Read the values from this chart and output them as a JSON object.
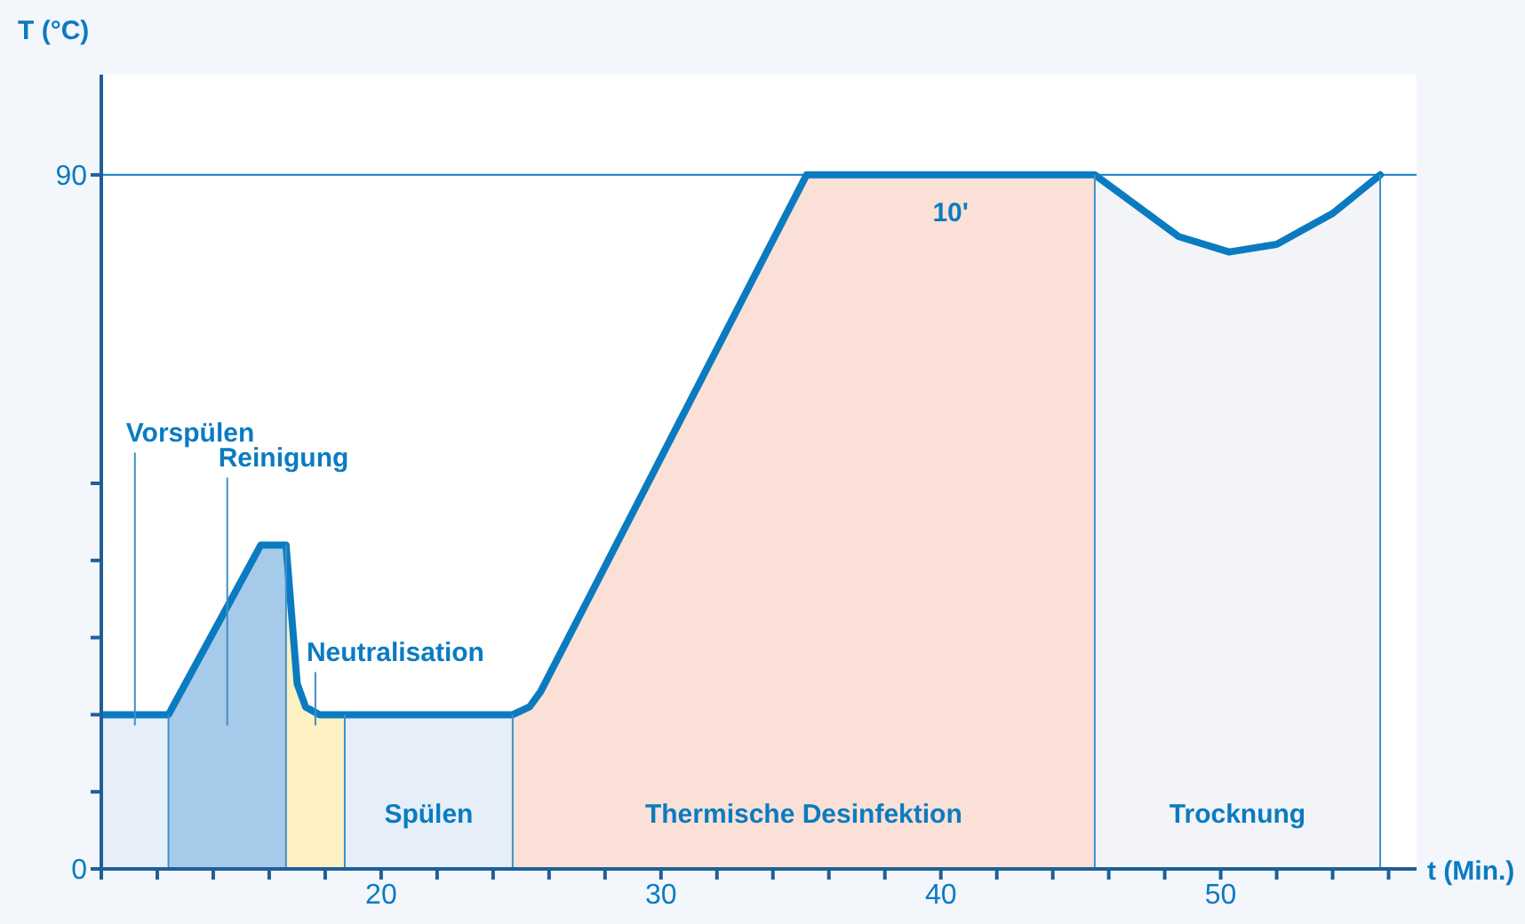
{
  "chart_data": {
    "type": "area",
    "xlabel": "t (Min.)",
    "ylabel": "T (°C)",
    "xlim": [
      10,
      57
    ],
    "ylim": [
      0,
      103
    ],
    "xticks": [
      {
        "value": 10,
        "label": null
      },
      {
        "value": 12,
        "label": null
      },
      {
        "value": 14,
        "label": null
      },
      {
        "value": 16,
        "label": null
      },
      {
        "value": 18,
        "label": null
      },
      20,
      {
        "value": 22,
        "label": null
      },
      {
        "value": 24,
        "label": null
      },
      {
        "value": 26,
        "label": null
      },
      {
        "value": 28,
        "label": null
      },
      30,
      {
        "value": 32,
        "label": null
      },
      {
        "value": 34,
        "label": null
      },
      {
        "value": 36,
        "label": null
      },
      {
        "value": 38,
        "label": null
      },
      40,
      {
        "value": 42,
        "label": null
      },
      {
        "value": 44,
        "label": null
      },
      {
        "value": 46,
        "label": null
      },
      {
        "value": 48,
        "label": null
      },
      50,
      {
        "value": 52,
        "label": null
      },
      {
        "value": 54,
        "label": null
      },
      {
        "value": 56,
        "label": null
      }
    ],
    "yticks": [
      0,
      {
        "value": 10,
        "label": null
      },
      {
        "value": 20,
        "label": null
      },
      {
        "value": 30,
        "label": null
      },
      {
        "value": 40,
        "label": null
      },
      {
        "value": 50,
        "label": null
      },
      90
    ],
    "grid": false,
    "ref_lines": [
      {
        "axis": "y",
        "value": 90,
        "color": "#0b7bc1"
      },
      {
        "axis": "x",
        "value": 12.4,
        "color": "#3d8fcc"
      },
      {
        "axis": "x",
        "value": 16.6,
        "color": "#3d8fcc"
      },
      {
        "axis": "x",
        "value": 18.7,
        "color": "#3d8fcc"
      },
      {
        "axis": "x",
        "value": 24.7,
        "color": "#3d8fcc"
      },
      {
        "axis": "x",
        "value": 45.5,
        "color": "#3d8fcc"
      },
      {
        "axis": "x",
        "value": 55.7,
        "color": "#3d8fcc"
      }
    ],
    "annotations": [
      "10'"
    ],
    "series": [
      {
        "name": "Vorspülen",
        "color": "#e6eff9",
        "x": [
          10,
          12.4
        ],
        "values": [
          20,
          20
        ]
      },
      {
        "name": "Reinigung",
        "color": "#a6cbea",
        "x": [
          12.4,
          15.7,
          16.6
        ],
        "values": [
          20,
          42,
          42
        ]
      },
      {
        "name": "Neutralisation",
        "color": "#fdf1c1",
        "x": [
          16.6,
          17.0,
          17.3,
          17.8,
          18.7
        ],
        "values": [
          42,
          24,
          21,
          20,
          20
        ]
      },
      {
        "name": "Spülen",
        "color": "#e6eff9",
        "x": [
          18.7,
          24.7
        ],
        "values": [
          20,
          20
        ]
      },
      {
        "name": "Thermische Desinfektion",
        "color": "#fae0d6",
        "x": [
          24.7,
          25.3,
          25.7,
          35.2,
          45.5
        ],
        "values": [
          20,
          21,
          23,
          90,
          90
        ]
      },
      {
        "name": "Trocknung",
        "color": "#f2f4f8",
        "x": [
          45.5,
          47,
          48.5,
          50.3,
          52,
          54,
          55.7
        ],
        "values": [
          90,
          86,
          82,
          80,
          81,
          85,
          90
        ]
      },
      {
        "type": "line",
        "color": "#0b7bc1",
        "marker": "none",
        "line_style": "solid",
        "x": [
          10,
          12.4,
          15.7,
          16.6,
          17.0,
          17.3,
          17.8,
          18.7,
          24.7,
          25.3,
          25.7,
          35.2,
          45.5,
          47,
          48.5,
          50.3,
          52,
          54,
          55.7
        ],
        "values": [
          20,
          20,
          42,
          42,
          24,
          21,
          20,
          20,
          20,
          21,
          23,
          90,
          90,
          86,
          82,
          80,
          81,
          85,
          90
        ]
      }
    ]
  }
}
